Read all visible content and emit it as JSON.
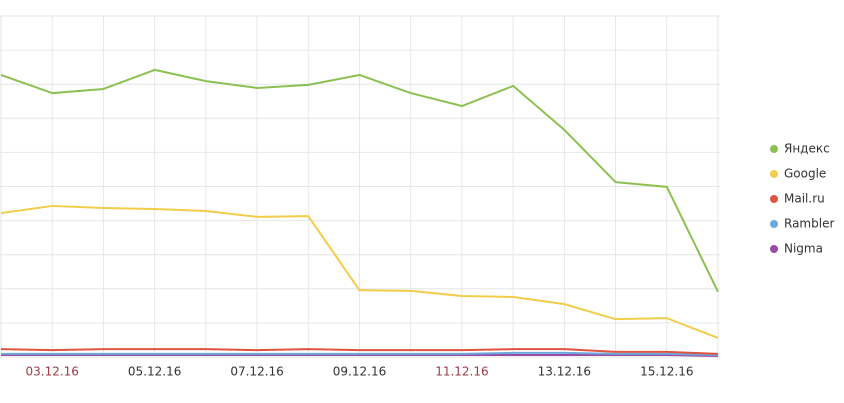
{
  "chart_data": {
    "type": "line",
    "categories": [
      null,
      "03.12.16",
      null,
      "05.12.16",
      null,
      "07.12.16",
      null,
      "09.12.16",
      null,
      "11.12.16",
      null,
      "13.12.16",
      null,
      "15.12.16",
      null
    ],
    "x_label_colors": [
      "#333333",
      "#9e3a47",
      "#333333",
      "#333333",
      "#333333",
      "#333333",
      "#333333",
      "#333333",
      "#333333",
      "#9e3a47",
      "#333333",
      "#333333",
      "#333333",
      "#333333",
      "#333333"
    ],
    "series": [
      {
        "name": "Яндекс",
        "color": "#8cc152",
        "values": [
          82.7,
          77.4,
          78.6,
          84.2,
          80.9,
          78.9,
          79.8,
          82.7,
          77.4,
          73.6,
          79.5,
          66.6,
          51.3,
          49.9,
          19.1
        ]
      },
      {
        "name": "Google",
        "color": "#f2cd4a",
        "values": [
          42.2,
          44.3,
          43.7,
          43.4,
          42.8,
          41.1,
          41.3,
          19.6,
          19.4,
          17.9,
          17.6,
          15.5,
          11.1,
          11.4,
          5.6
        ]
      },
      {
        "name": "Mail.ru",
        "color": "#e0533e",
        "values": [
          2.3,
          2.0,
          2.3,
          2.3,
          2.3,
          2.0,
          2.3,
          2.0,
          2.0,
          2.0,
          2.3,
          2.3,
          1.5,
          1.5,
          0.9
        ]
      },
      {
        "name": "Rambler",
        "color": "#6aa9dd",
        "values": [
          0.9,
          0.9,
          0.9,
          0.9,
          0.9,
          0.9,
          0.9,
          0.9,
          0.9,
          0.9,
          1.2,
          1.2,
          0.9,
          0.9,
          0.6
        ]
      },
      {
        "name": "Nigma",
        "color": "#9b4aa8",
        "values": [
          0.6,
          0.6,
          0.6,
          0.6,
          0.6,
          0.6,
          0.6,
          0.6,
          0.6,
          0.6,
          0.6,
          0.6,
          0.6,
          0.6,
          0.3
        ]
      }
    ],
    "ylim": [
      0,
      100
    ],
    "yticks": [
      0,
      10,
      20,
      30,
      40,
      50,
      60,
      70,
      80,
      90,
      100
    ],
    "grid": true
  }
}
